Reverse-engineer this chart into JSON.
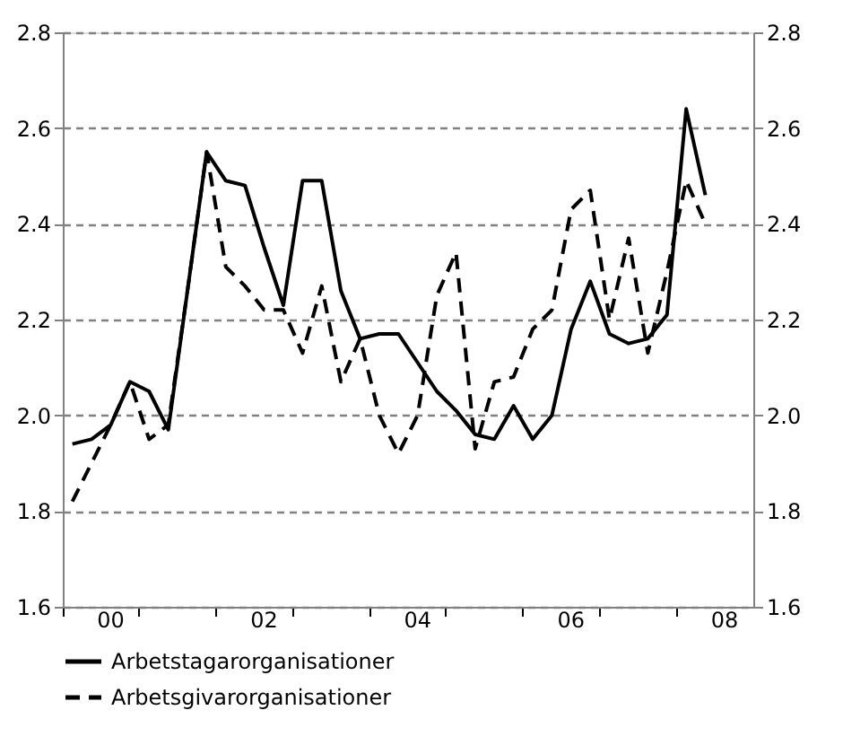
{
  "chart_data": {
    "type": "line",
    "categories": [
      null,
      null,
      "00",
      null,
      null,
      null,
      null,
      null,
      null,
      null,
      "02",
      null,
      null,
      null,
      null,
      null,
      null,
      null,
      "04",
      null,
      null,
      null,
      null,
      null,
      null,
      null,
      "06",
      null,
      null,
      null,
      null,
      null,
      null,
      null,
      "08",
      null
    ],
    "series": [
      {
        "name": "Arbetstagarorganisationer",
        "color": "#000000",
        "line_style": "solid",
        "values": [
          1.94,
          1.95,
          1.98,
          2.07,
          2.05,
          1.97,
          2.26,
          2.55,
          2.49,
          2.48,
          2.35,
          2.23,
          2.49,
          2.49,
          2.26,
          2.16,
          2.17,
          2.17,
          2.11,
          2.05,
          2.01,
          1.96,
          1.95,
          2.02,
          1.95,
          2.0,
          2.18,
          2.28,
          2.17,
          2.15,
          2.16,
          2.21,
          2.64,
          2.46,
          null,
          null
        ]
      },
      {
        "name": "Arbetsgivarorganisationer",
        "color": "#000000",
        "line_style": "dashed",
        "values": [
          1.82,
          1.9,
          1.98,
          2.07,
          1.95,
          1.98,
          2.26,
          2.55,
          2.31,
          2.27,
          2.22,
          2.22,
          2.13,
          2.27,
          2.07,
          2.16,
          2.0,
          1.92,
          2.0,
          2.25,
          2.34,
          1.93,
          2.07,
          2.08,
          2.18,
          2.22,
          2.43,
          2.47,
          2.2,
          2.37,
          2.13,
          2.3,
          2.49,
          2.4,
          null,
          null
        ]
      }
    ],
    "ylim": [
      1.6,
      2.8
    ],
    "yticks": [
      1.6,
      1.8,
      {
        "value": 2,
        "label": "2.0"
      },
      2.2,
      2.4,
      2.6,
      2.8
    ],
    "y2lim": [
      1.6,
      2.8
    ],
    "y2ticks": [
      1.6,
      1.8,
      {
        "value": 2,
        "label": "2.0"
      },
      2.2,
      2.4,
      2.6,
      2.8
    ],
    "grid": "y",
    "legend": "bottom"
  }
}
